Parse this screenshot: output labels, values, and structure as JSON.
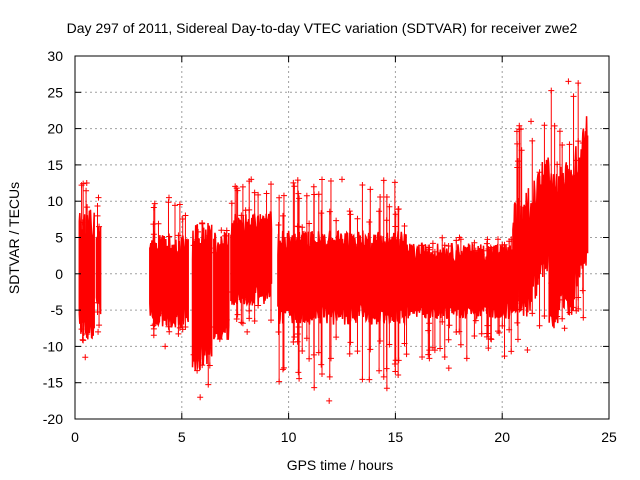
{
  "chart_data": {
    "type": "scatter",
    "title": "Day 297 of 2011, Sidereal Day-to-day VTEC variation (SDTVAR) for receiver zwe2",
    "xlabel": "GPS time / hours",
    "ylabel": "SDTVAR / TECUs",
    "xlim": [
      0,
      25
    ],
    "ylim": [
      -20,
      30
    ],
    "xticks": [
      0,
      5,
      10,
      15,
      20,
      25
    ],
    "yticks": [
      -20,
      -15,
      -10,
      -5,
      0,
      5,
      10,
      15,
      20,
      25,
      30
    ],
    "grid": true,
    "legend": "none",
    "marker": "plus",
    "series_color": "#ff0000",
    "segments": [
      {
        "x_start": 0.2,
        "x_end": 0.9,
        "center": 0,
        "spread": 7,
        "peak_max": 12.5,
        "peak_min": -11.5
      },
      {
        "x_start": 1.0,
        "x_end": 1.2,
        "center": 0.5,
        "spread": 5,
        "peak_max": 10.5,
        "peak_min": -8
      },
      {
        "x_start": 3.5,
        "x_end": 5.3,
        "center": -1,
        "spread": 5,
        "peak_max": 10.5,
        "peak_min": -10
      },
      {
        "x_start": 5.5,
        "x_end": 6.4,
        "center": -3,
        "spread": 8,
        "peak_max": 7,
        "peak_min": -17
      },
      {
        "x_start": 6.5,
        "x_end": 7.2,
        "center": -2,
        "spread": 6,
        "peak_max": 6,
        "peak_min": -9
      },
      {
        "x_start": 7.3,
        "x_end": 9.2,
        "center": 2,
        "spread": 5,
        "peak_max": 13,
        "peak_min": -8
      },
      {
        "x_start": 9.5,
        "x_end": 15.5,
        "center": -0.5,
        "spread": 5,
        "peak_max": 13,
        "peak_min": -17.5
      },
      {
        "x_start": 15.5,
        "x_end": 20.5,
        "center": -1,
        "spread": 4,
        "peak_max": 5,
        "peak_min": -13
      },
      {
        "x_start": 20.5,
        "x_end": 22.2,
        "center": 2,
        "spread": 6,
        "peak_max": 21,
        "peak_min": -10.5
      },
      {
        "x_start": 22.2,
        "x_end": 24.0,
        "center": 3,
        "spread": 8,
        "peak_max": 26.5,
        "peak_min": -7.5
      }
    ]
  }
}
